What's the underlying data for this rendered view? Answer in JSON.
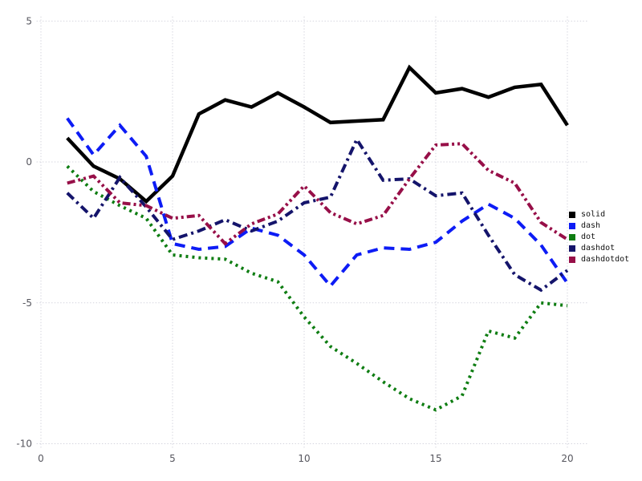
{
  "chart_data": {
    "type": "line",
    "title": "",
    "xlabel": "",
    "ylabel": "",
    "grid": "dotted",
    "legend_position": "right-outside",
    "xlim": [
      0,
      20.7
    ],
    "ylim": [
      -10.5,
      5.5
    ],
    "x_ticks": [
      "0",
      "5",
      "10",
      "15",
      "20"
    ],
    "x_tick_values": [
      0,
      5,
      10,
      15,
      20
    ],
    "y_ticks": [
      "5",
      "0",
      "-5",
      "-10"
    ],
    "y_tick_values": [
      5,
      0,
      -5,
      -10
    ],
    "x": [
      1,
      2,
      3,
      4,
      5,
      6,
      7,
      8,
      9,
      10,
      11,
      12,
      13,
      14,
      15,
      16,
      17,
      18,
      19,
      20
    ],
    "series": [
      {
        "name": "solid",
        "color": "#000000",
        "dash_style": "solid",
        "values": [
          0.85,
          -0.15,
          -0.6,
          -1.4,
          -0.5,
          1.7,
          2.2,
          1.95,
          2.45,
          1.95,
          1.4,
          1.45,
          1.5,
          3.35,
          2.45,
          2.6,
          2.3,
          2.65,
          2.75,
          1.3
        ]
      },
      {
        "name": "dash",
        "color": "#0d1cf5",
        "dash_style": "dash",
        "values": [
          1.55,
          0.25,
          1.3,
          0.2,
          -2.9,
          -3.1,
          -3.0,
          -2.35,
          -2.6,
          -3.3,
          -4.4,
          -3.3,
          -3.05,
          -3.1,
          -2.85,
          -2.1,
          -1.5,
          -2.0,
          -2.95,
          -4.3
        ]
      },
      {
        "name": "dot",
        "color": "#0e7d12",
        "dash_style": "dot",
        "values": [
          -0.15,
          -1.05,
          -1.55,
          -2.0,
          -3.3,
          -3.4,
          -3.45,
          -3.95,
          -4.25,
          -5.5,
          -6.55,
          -7.15,
          -7.8,
          -8.4,
          -8.8,
          -8.3,
          -6.0,
          -6.25,
          -5.0,
          -5.1
        ]
      },
      {
        "name": "dashdot",
        "color": "#14146b",
        "dash_style": "dashdot",
        "values": [
          -1.1,
          -2.0,
          -0.55,
          -1.6,
          -2.75,
          -2.45,
          -2.05,
          -2.45,
          -2.1,
          -1.45,
          -1.25,
          0.8,
          -0.65,
          -0.6,
          -1.2,
          -1.1,
          -2.6,
          -4.0,
          -4.55,
          -3.85
        ]
      },
      {
        "name": "dashdotdot",
        "color": "#970f48",
        "dash_style": "dashdotdot",
        "values": [
          -0.75,
          -0.5,
          -1.45,
          -1.55,
          -2.0,
          -1.9,
          -2.9,
          -2.2,
          -1.85,
          -0.85,
          -1.8,
          -2.2,
          -1.9,
          -0.6,
          0.6,
          0.65,
          -0.3,
          -0.75,
          -2.15,
          -2.75
        ]
      }
    ],
    "grid_color": "#d2d2dc"
  }
}
